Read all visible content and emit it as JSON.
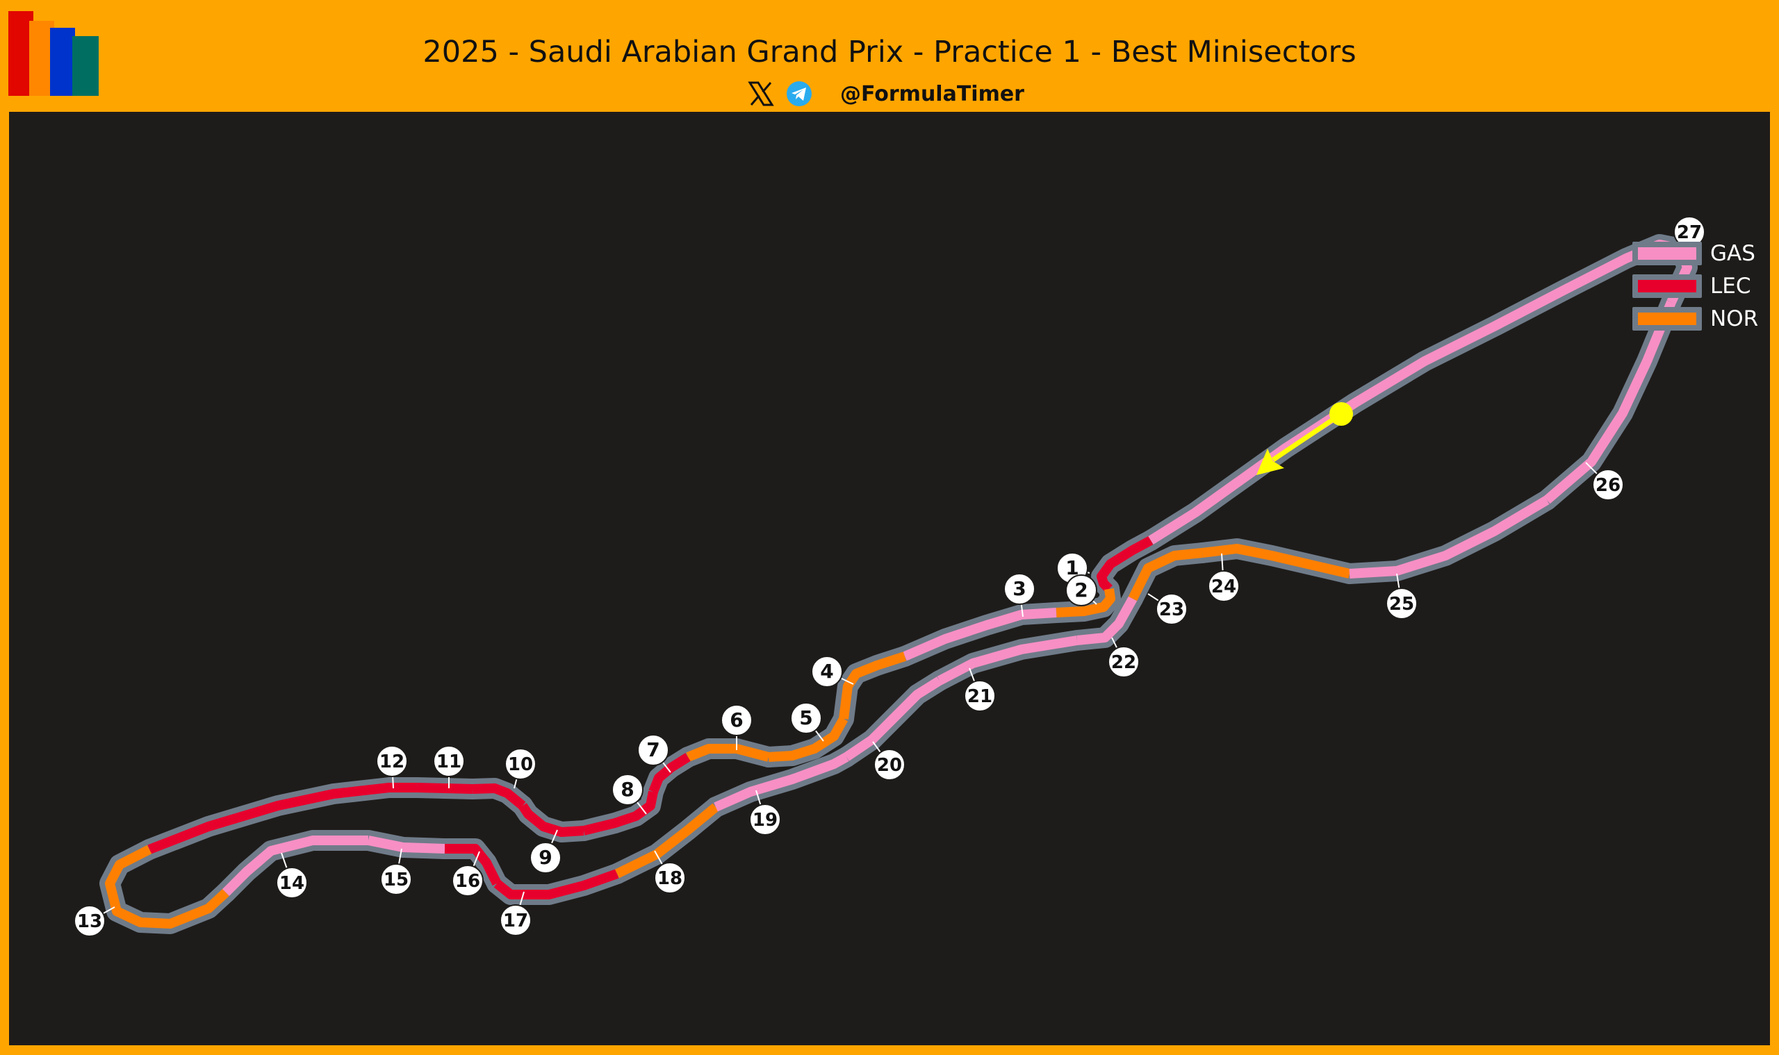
{
  "header": {
    "title": "2025 - Saudi Arabian Grand Prix - Practice 1 - Best Minisectors",
    "handle": "@FormulaTimer",
    "icons": [
      "x-logo-icon",
      "telegram-icon"
    ],
    "logo_colors": [
      "#E10600",
      "#FF8700",
      "#0033CC",
      "#006F62"
    ]
  },
  "colors": {
    "header_background": "#FFA500",
    "panel_background": "#1E1C1A",
    "track_outline": "#6F7B89",
    "start_marker": "#FFFF00"
  },
  "legend": [
    {
      "code": "GAS",
      "color": "#F78FC4"
    },
    {
      "code": "LEC",
      "color": "#E8002D"
    },
    {
      "code": "NOR",
      "color": "#FF8000"
    }
  ],
  "sectors": [
    {
      "n": "1",
      "driver": "LEC"
    },
    {
      "n": "2",
      "driver": "NOR"
    },
    {
      "n": "3",
      "driver": "GAS"
    },
    {
      "n": "4",
      "driver": "NOR"
    },
    {
      "n": "5",
      "driver": "NOR"
    },
    {
      "n": "6",
      "driver": "NOR"
    },
    {
      "n": "7",
      "driver": "LEC"
    },
    {
      "n": "8",
      "driver": "LEC"
    },
    {
      "n": "9",
      "driver": "LEC"
    },
    {
      "n": "10",
      "driver": "LEC"
    },
    {
      "n": "11",
      "driver": "LEC"
    },
    {
      "n": "12",
      "driver": "LEC"
    },
    {
      "n": "13",
      "driver": "NOR"
    },
    {
      "n": "14",
      "driver": "GAS"
    },
    {
      "n": "15",
      "driver": "GAS"
    },
    {
      "n": "16",
      "driver": "LEC"
    },
    {
      "n": "17",
      "driver": "LEC"
    },
    {
      "n": "18",
      "driver": "NOR"
    },
    {
      "n": "19",
      "driver": "GAS"
    },
    {
      "n": "20",
      "driver": "GAS"
    },
    {
      "n": "21",
      "driver": "GAS"
    },
    {
      "n": "22",
      "driver": "GAS"
    },
    {
      "n": "23",
      "driver": "NOR"
    },
    {
      "n": "24",
      "driver": "NOR"
    },
    {
      "n": "25",
      "driver": "GAS"
    },
    {
      "n": "26",
      "driver": "GAS"
    },
    {
      "n": "27",
      "driver": "GAS"
    }
  ]
}
